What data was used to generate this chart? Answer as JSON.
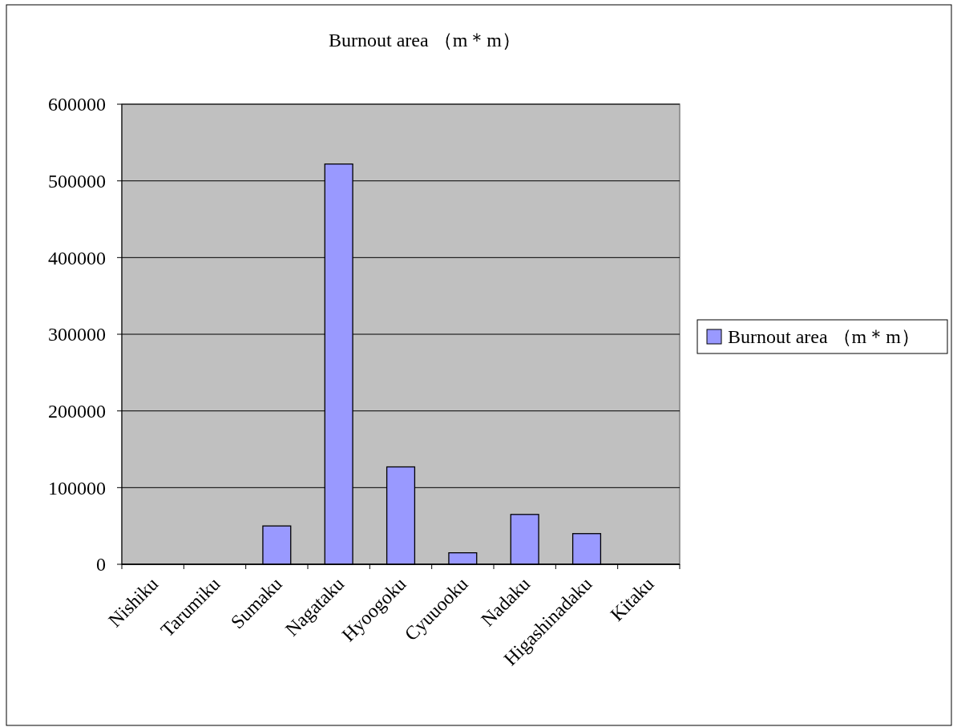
{
  "chart_data": {
    "type": "bar",
    "title": "Burnout area （m＊m）",
    "categories": [
      "Nishiku",
      "Tarumiku",
      "Sumaku",
      "Nagataku",
      "Hyoogoku",
      "Cyuuooku",
      "Nadaku",
      "Higashinadaku",
      "Kitaku"
    ],
    "series": [
      {
        "name": "Burnout area （m＊m）",
        "color": "#9999ff",
        "values": [
          0,
          0,
          50000,
          522000,
          127000,
          15000,
          65000,
          40000,
          0
        ]
      }
    ],
    "ylim": [
      0,
      600000
    ],
    "yticks": [
      0,
      100000,
      200000,
      300000,
      400000,
      500000,
      600000
    ],
    "grid": "y",
    "legend": "right"
  }
}
